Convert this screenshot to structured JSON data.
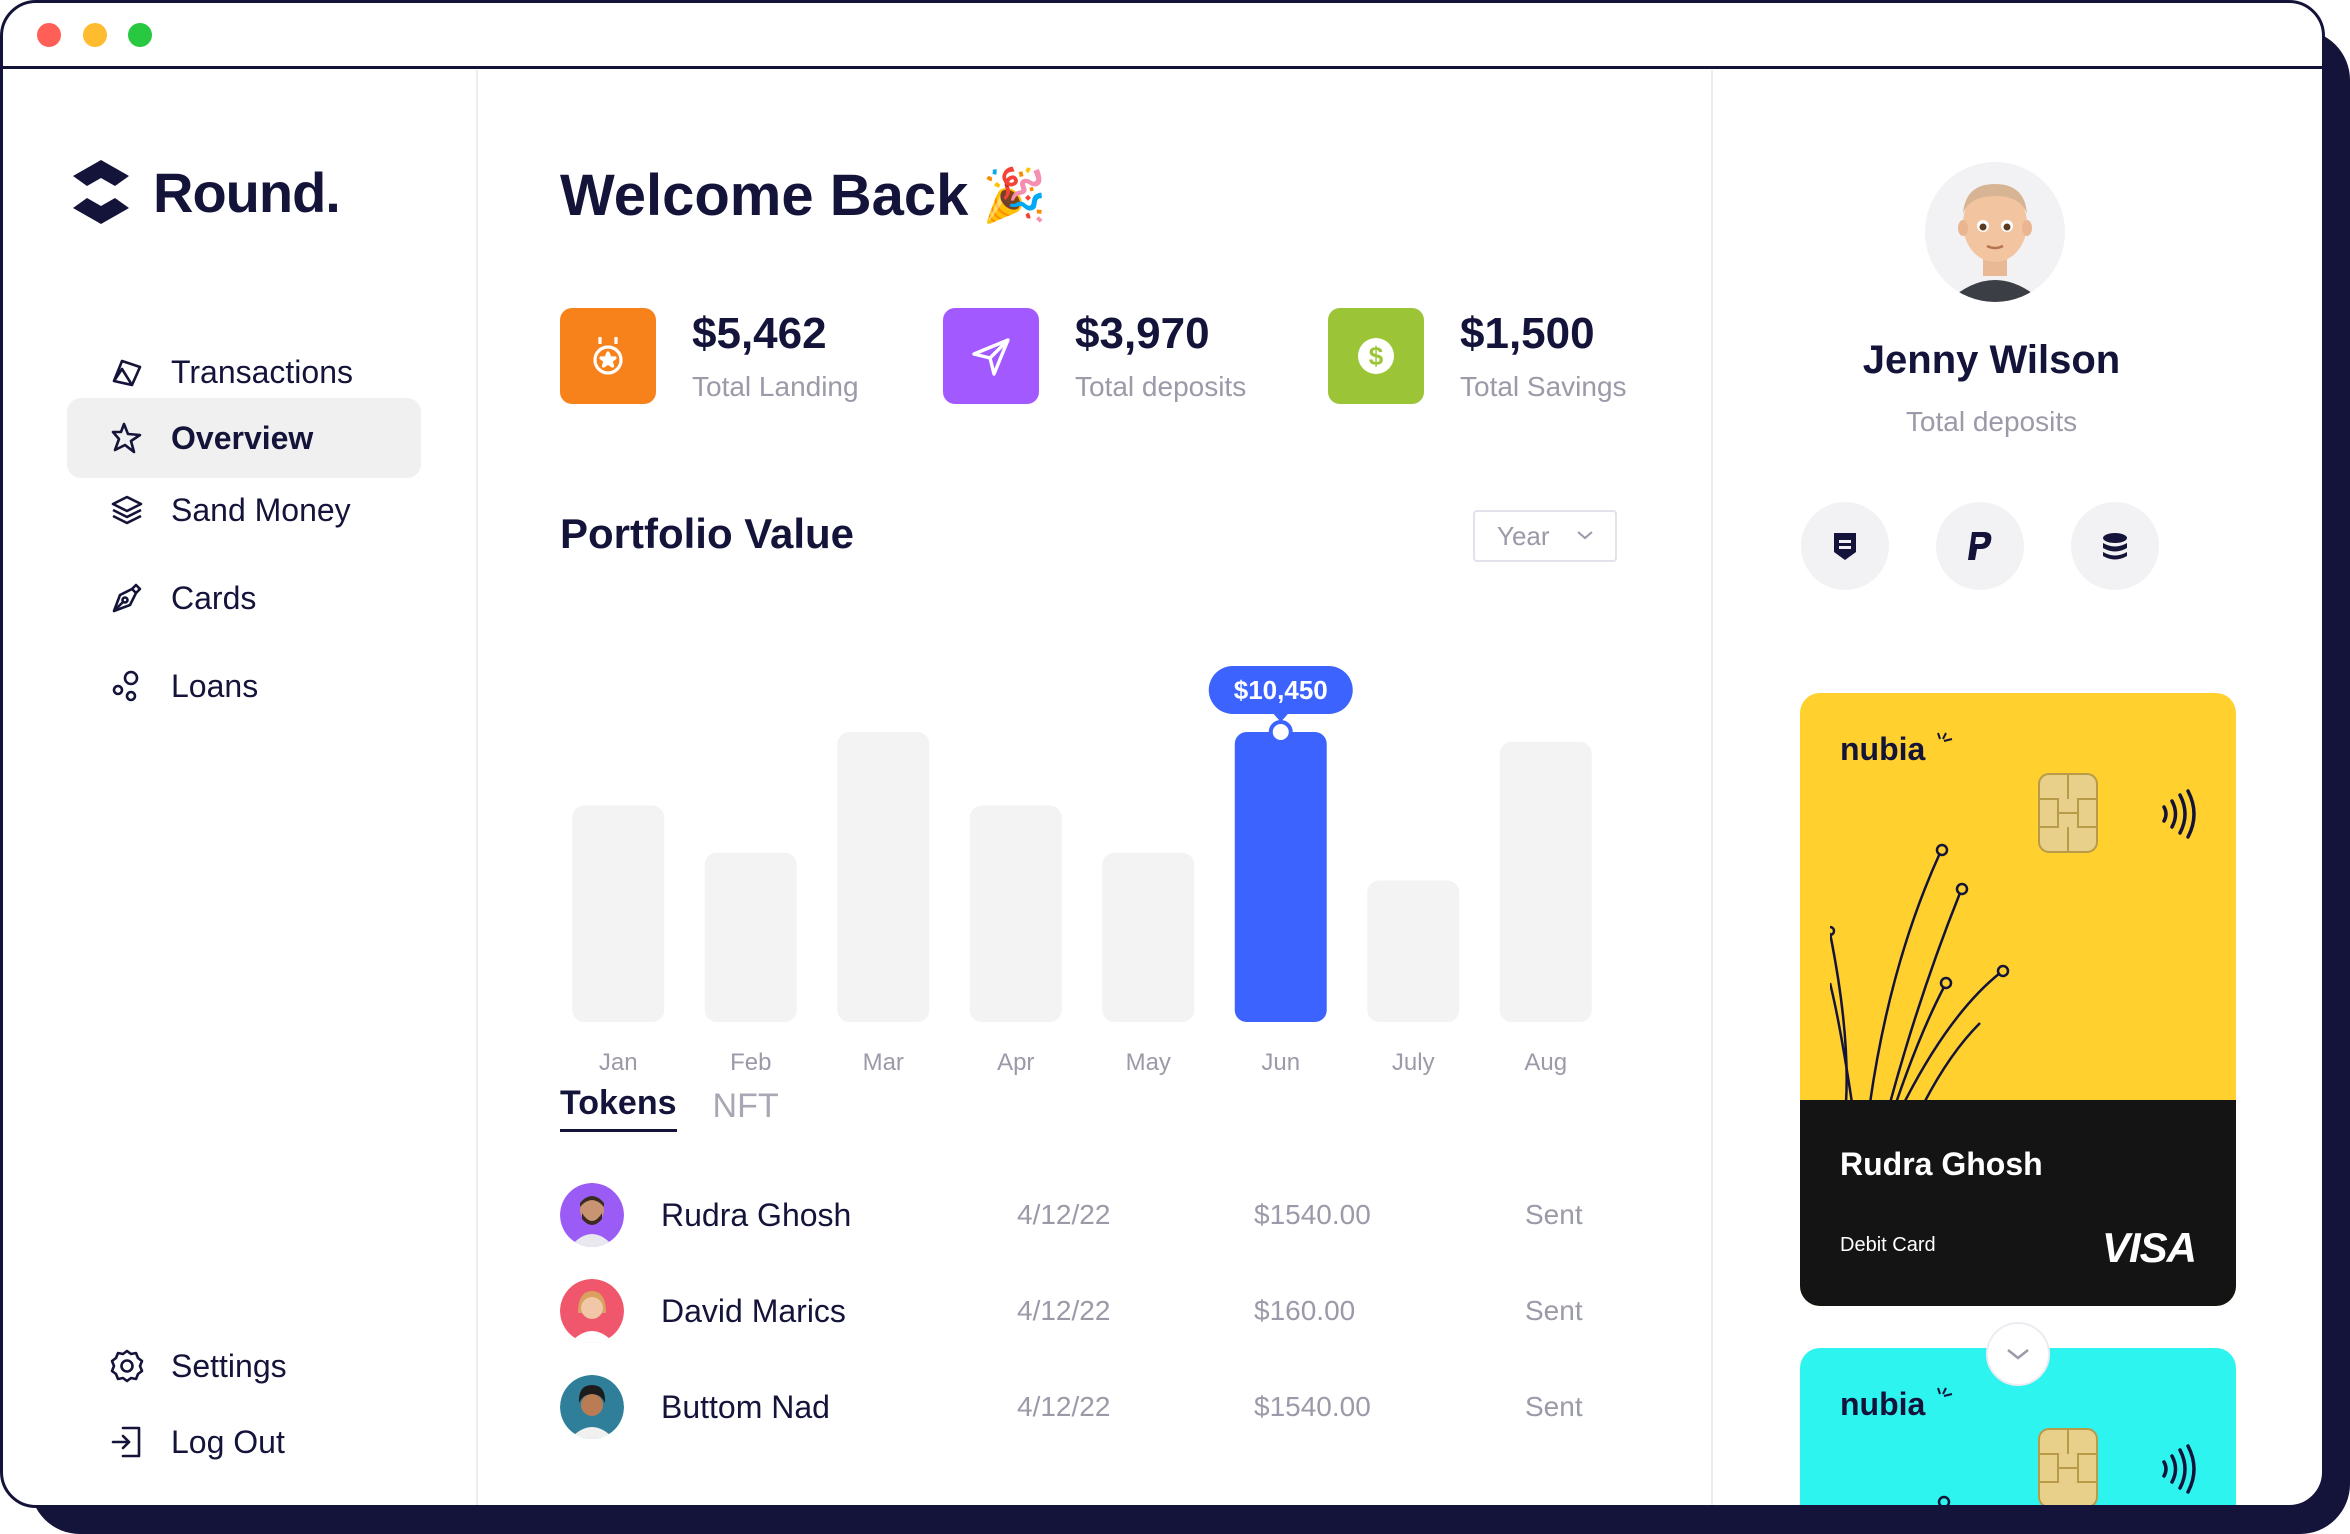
{
  "app": {
    "name": "Round."
  },
  "sidebar": {
    "items": [
      {
        "label": "Transactions",
        "icon": "tag-icon"
      },
      {
        "label": "Overview",
        "icon": "sparkle-icon",
        "active": true
      },
      {
        "label": "Sand Money",
        "icon": "layers-icon"
      },
      {
        "label": "Cards",
        "icon": "pen-icon"
      },
      {
        "label": "Loans",
        "icon": "circles-icon"
      }
    ],
    "bottom": [
      {
        "label": "Settings",
        "icon": "gear-icon"
      },
      {
        "label": "Log Out",
        "icon": "logout-icon"
      }
    ]
  },
  "main": {
    "welcome": "Welcome Back",
    "welcome_emoji": "🎉",
    "stats": [
      {
        "value": "$5,462",
        "label": "Total Landing",
        "color": "#f7821c",
        "icon": "medal-icon"
      },
      {
        "value": "$3,970",
        "label": "Total deposits",
        "color": "#a259ff",
        "icon": "send-icon"
      },
      {
        "value": "$1,500",
        "label": "Total Savings",
        "color": "#9bc437",
        "icon": "dollar-icon"
      }
    ],
    "portfolio": {
      "title": "Portfolio Value",
      "period": "Year"
    },
    "tabs": [
      "Tokens",
      "NFT"
    ],
    "transactions": [
      {
        "name": "Rudra Ghosh",
        "date": "4/12/22",
        "amount": "$1540.00",
        "status": "Sent"
      },
      {
        "name": "David Marics",
        "date": "4/12/22",
        "amount": "$160.00",
        "status": "Sent"
      },
      {
        "name": "Buttom Nad",
        "date": "4/12/22",
        "amount": "$1540.00",
        "status": "Sent"
      }
    ]
  },
  "chart_data": {
    "type": "bar",
    "categories": [
      "Jan",
      "Feb",
      "Mar",
      "Apr",
      "May",
      "Jun",
      "July",
      "Aug"
    ],
    "values": [
      7800,
      6100,
      10450,
      7800,
      6100,
      10450,
      5100,
      10100
    ],
    "highlight_index": 5,
    "highlight_label": "$10,450",
    "highlight_color": "#3d63ff",
    "bar_color": "#f3f3f3"
  },
  "profile": {
    "name": "Jenny Wilson",
    "subtitle": "Total deposits",
    "actions": [
      "wallet-icon",
      "paypal-icon",
      "coins-icon"
    ]
  },
  "cards": [
    {
      "brand": "nubia",
      "holder": "Rudra Ghosh",
      "type": "Debit Card",
      "network": "VISA",
      "color": "#ffd02e"
    },
    {
      "brand": "nubia",
      "color": "#2ef4f0"
    }
  ]
}
